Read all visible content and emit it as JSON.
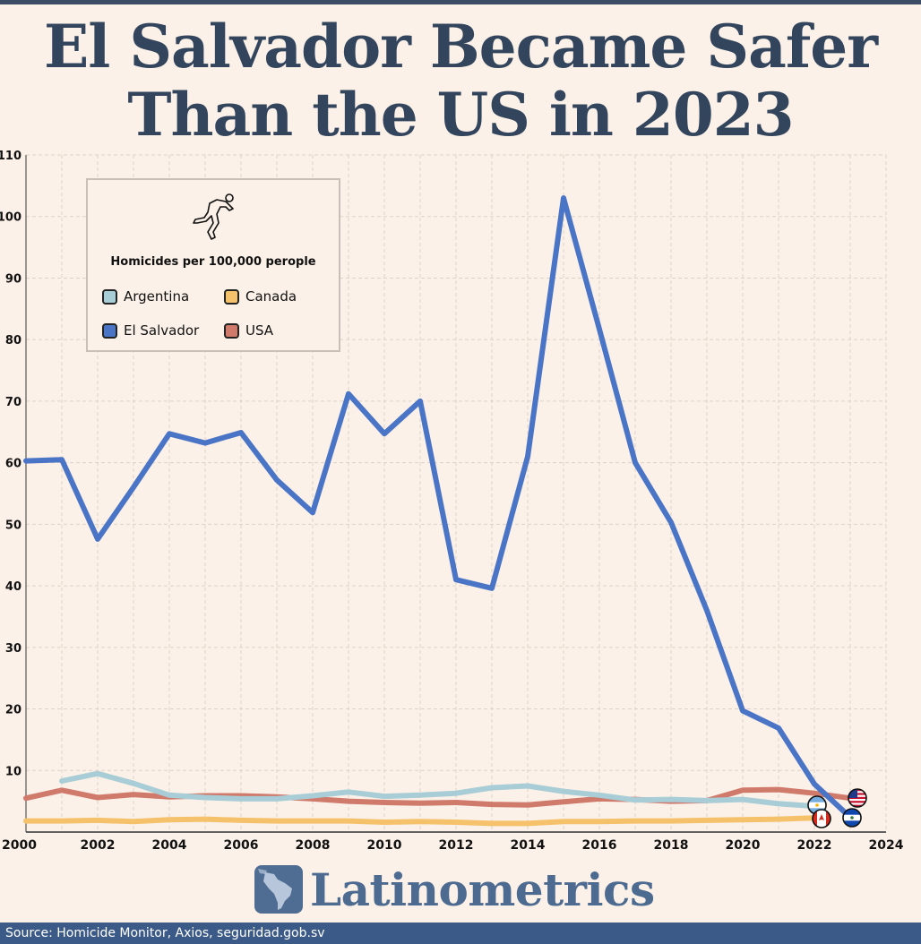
{
  "title_lines": [
    "El Salvador Became Safer",
    "Than the US in 2023"
  ],
  "legend": {
    "title": "Homicides per 100,000 perople",
    "icon": "chalk-outline-body-icon"
  },
  "brand": {
    "name": "Latinometrics",
    "icon": "latin-america-map-icon"
  },
  "footer": {
    "source": "Source:  Homicide Monitor, Axios, seguridad.gob.sv"
  },
  "colors": {
    "background": "#fbf1e8",
    "title": "#33455d",
    "grid": "#ddd2c8",
    "footer": "#3b5a87"
  },
  "chart_data": {
    "type": "line",
    "xlim": [
      2000,
      2024
    ],
    "ylim": [
      0,
      110
    ],
    "x_ticks": [
      "2000",
      "2002",
      "2004",
      "2006",
      "2008",
      "2010",
      "2012",
      "2014",
      "2016",
      "2018",
      "2020",
      "2022",
      "2024"
    ],
    "y_ticks": [
      "10",
      "20",
      "30",
      "40",
      "50",
      "60",
      "70",
      "80",
      "90",
      "100",
      "110"
    ],
    "grid": true,
    "legend_position": "top-left",
    "series": [
      {
        "name": "Argentina",
        "color": "#a8cdd6",
        "flag": "argentina-flag-icon",
        "x": [
          2001,
          2002,
          2003,
          2004,
          2005,
          2006,
          2007,
          2008,
          2009,
          2010,
          2011,
          2012,
          2013,
          2014,
          2015,
          2016,
          2017,
          2018,
          2019,
          2020,
          2021,
          2022
        ],
        "y": [
          8.3,
          9.5,
          7.9,
          6.0,
          5.6,
          5.4,
          5.4,
          5.9,
          6.5,
          5.8,
          6.0,
          6.3,
          7.2,
          7.5,
          6.6,
          6.0,
          5.2,
          5.3,
          5.1,
          5.3,
          4.6,
          4.2
        ]
      },
      {
        "name": "Canada",
        "color": "#f5c26b",
        "flag": "canada-flag-icon",
        "x": [
          2000,
          2001,
          2002,
          2003,
          2004,
          2005,
          2006,
          2007,
          2008,
          2009,
          2010,
          2011,
          2012,
          2013,
          2014,
          2015,
          2016,
          2017,
          2018,
          2019,
          2020,
          2021,
          2022
        ],
        "y": [
          1.8,
          1.8,
          1.9,
          1.7,
          2.0,
          2.1,
          1.9,
          1.8,
          1.8,
          1.8,
          1.6,
          1.7,
          1.6,
          1.4,
          1.4,
          1.7,
          1.7,
          1.8,
          1.8,
          1.9,
          2.0,
          2.1,
          2.3
        ]
      },
      {
        "name": "El Salvador",
        "color": "#4a74c6",
        "flag": "el-salvador-flag-icon",
        "x": [
          2000,
          2001,
          2002,
          2003,
          2004,
          2005,
          2006,
          2007,
          2008,
          2009,
          2010,
          2011,
          2012,
          2013,
          2014,
          2015,
          2016,
          2017,
          2018,
          2019,
          2020,
          2021,
          2022,
          2023
        ],
        "y": [
          60.3,
          60.5,
          47.6,
          56.0,
          64.7,
          63.2,
          64.9,
          57.2,
          51.9,
          71.2,
          64.7,
          70.0,
          41.0,
          39.6,
          61.0,
          103.0,
          81.7,
          60.0,
          50.3,
          36.0,
          19.7,
          16.9,
          7.8,
          2.4
        ]
      },
      {
        "name": "USA",
        "color": "#d07a6c",
        "flag": "usa-flag-icon",
        "x": [
          2000,
          2001,
          2002,
          2003,
          2004,
          2005,
          2006,
          2007,
          2008,
          2009,
          2010,
          2011,
          2012,
          2013,
          2014,
          2015,
          2016,
          2017,
          2018,
          2019,
          2020,
          2021,
          2022,
          2023
        ],
        "y": [
          5.5,
          6.8,
          5.6,
          6.1,
          5.7,
          5.9,
          5.9,
          5.7,
          5.4,
          5.0,
          4.8,
          4.7,
          4.8,
          4.5,
          4.4,
          4.9,
          5.4,
          5.3,
          5.0,
          5.1,
          6.8,
          6.9,
          6.3,
          5.5
        ]
      }
    ]
  }
}
